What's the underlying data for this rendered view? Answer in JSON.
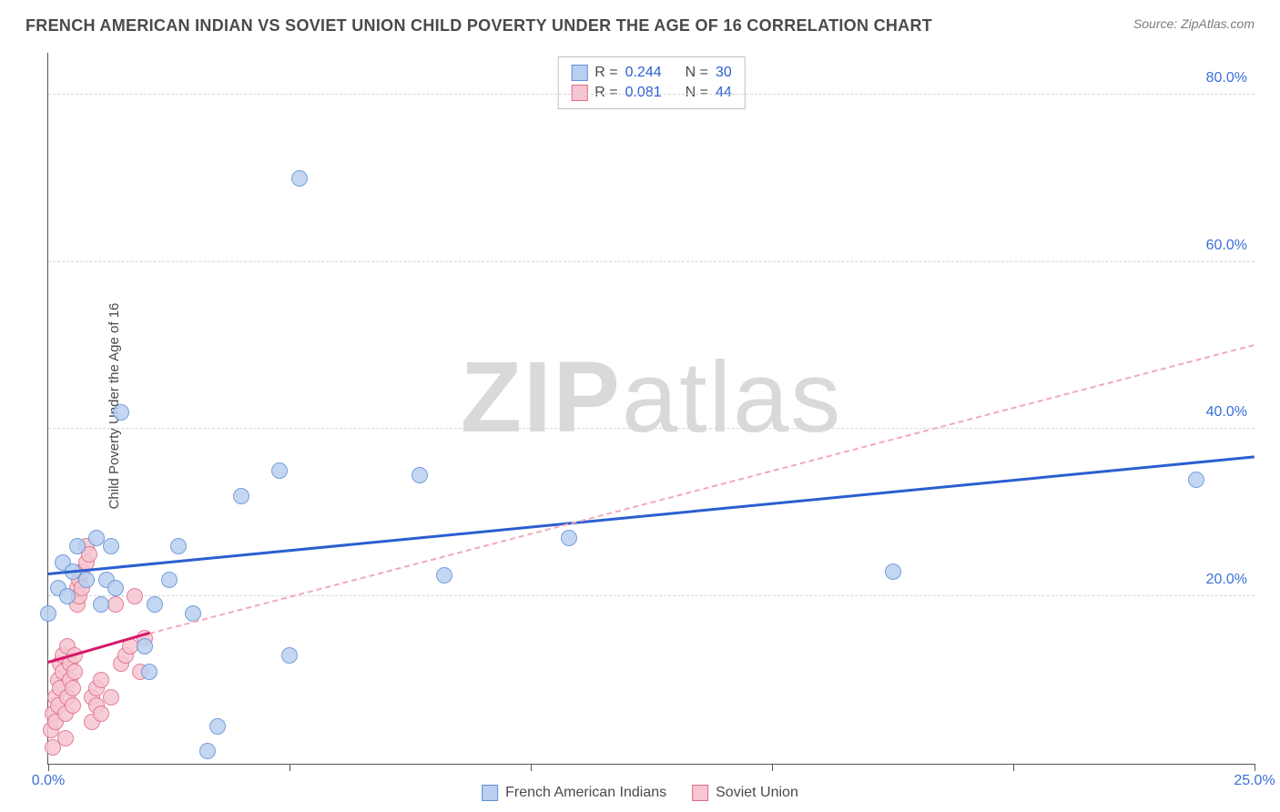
{
  "title": "FRENCH AMERICAN INDIAN VS SOVIET UNION CHILD POVERTY UNDER THE AGE OF 16 CORRELATION CHART",
  "source": "Source: ZipAtlas.com",
  "ylabel": "Child Poverty Under the Age of 16",
  "watermark": {
    "bold": "ZIP",
    "light": "atlas"
  },
  "chart": {
    "type": "scatter",
    "xlim": [
      0,
      25
    ],
    "ylim": [
      0,
      85
    ],
    "x_ticks": [
      0,
      5,
      10,
      15,
      20,
      25
    ],
    "x_tick_labels": [
      "0.0%",
      "",
      "",
      "",
      "",
      "25.0%"
    ],
    "y_grid": [
      20,
      40,
      60,
      80
    ],
    "y_grid_labels": [
      "20.0%",
      "40.0%",
      "60.0%",
      "80.0%"
    ],
    "background_color": "#ffffff",
    "grid_color": "#d6d6d6",
    "axis_color": "#555555",
    "label_color": "#3b6fd6"
  },
  "series": [
    {
      "name": "French American Indians",
      "color_fill": "#b9d0f0",
      "color_stroke": "#5f8fd6",
      "marker_radius": 9,
      "trend": {
        "x1": 0,
        "y1": 22.5,
        "x2": 25,
        "y2": 36.5,
        "style": "solid",
        "color": "#2a5fd0",
        "width": 3
      },
      "trend_ext": null,
      "stats": {
        "R": "0.244",
        "N": "30"
      },
      "points": [
        [
          0.0,
          18
        ],
        [
          0.2,
          21
        ],
        [
          0.3,
          24
        ],
        [
          0.4,
          20
        ],
        [
          0.6,
          26
        ],
        [
          0.8,
          22
        ],
        [
          1.0,
          27
        ],
        [
          1.2,
          22
        ],
        [
          1.4,
          21
        ],
        [
          1.3,
          26
        ],
        [
          1.5,
          42
        ],
        [
          2.0,
          14
        ],
        [
          2.1,
          11
        ],
        [
          2.2,
          19
        ],
        [
          2.5,
          22
        ],
        [
          2.7,
          26
        ],
        [
          3.0,
          18
        ],
        [
          3.3,
          1.5
        ],
        [
          3.5,
          4.5
        ],
        [
          4.0,
          32
        ],
        [
          4.8,
          35
        ],
        [
          5.0,
          13
        ],
        [
          5.2,
          70
        ],
        [
          7.7,
          34.5
        ],
        [
          8.2,
          22.5
        ],
        [
          10.8,
          27
        ],
        [
          17.5,
          23
        ],
        [
          23.8,
          34
        ],
        [
          0.5,
          23
        ],
        [
          1.1,
          19
        ]
      ]
    },
    {
      "name": "Soviet Union",
      "color_fill": "#f6c6d1",
      "color_stroke": "#e06a8a",
      "marker_radius": 9,
      "trend": {
        "x1": 0,
        "y1": 12,
        "x2": 2.1,
        "y2": 15.5,
        "style": "solid",
        "color": "#d6176a",
        "width": 3
      },
      "trend_ext": {
        "x1": 2.1,
        "y1": 15.5,
        "x2": 25,
        "y2": 50,
        "style": "dashed",
        "color": "#f2a9b9",
        "width": 2
      },
      "stats": {
        "R": "0.081",
        "N": "44"
      },
      "points": [
        [
          0.05,
          4
        ],
        [
          0.1,
          2
        ],
        [
          0.1,
          6
        ],
        [
          0.15,
          8
        ],
        [
          0.15,
          5
        ],
        [
          0.2,
          10
        ],
        [
          0.2,
          7
        ],
        [
          0.25,
          12
        ],
        [
          0.25,
          9
        ],
        [
          0.3,
          11
        ],
        [
          0.3,
          13
        ],
        [
          0.35,
          3
        ],
        [
          0.35,
          6
        ],
        [
          0.4,
          14
        ],
        [
          0.4,
          8
        ],
        [
          0.45,
          10
        ],
        [
          0.45,
          12
        ],
        [
          0.5,
          9
        ],
        [
          0.5,
          7
        ],
        [
          0.55,
          13
        ],
        [
          0.55,
          11
        ],
        [
          0.6,
          19
        ],
        [
          0.6,
          21
        ],
        [
          0.65,
          20
        ],
        [
          0.65,
          22
        ],
        [
          0.7,
          21
        ],
        [
          0.7,
          23
        ],
        [
          0.8,
          24
        ],
        [
          0.8,
          26
        ],
        [
          0.85,
          25
        ],
        [
          0.9,
          5
        ],
        [
          0.9,
          8
        ],
        [
          1.0,
          7
        ],
        [
          1.0,
          9
        ],
        [
          1.1,
          6
        ],
        [
          1.1,
          10
        ],
        [
          1.3,
          8
        ],
        [
          1.4,
          19
        ],
        [
          1.5,
          12
        ],
        [
          1.6,
          13
        ],
        [
          1.7,
          14
        ],
        [
          1.8,
          20
        ],
        [
          1.9,
          11
        ],
        [
          2.0,
          15
        ]
      ]
    }
  ],
  "legend": {
    "items": [
      {
        "label": "French American Indians",
        "fill": "#b9d0f0",
        "stroke": "#5f8fd6"
      },
      {
        "label": "Soviet Union",
        "fill": "#f6c6d1",
        "stroke": "#e06a8a"
      }
    ]
  }
}
